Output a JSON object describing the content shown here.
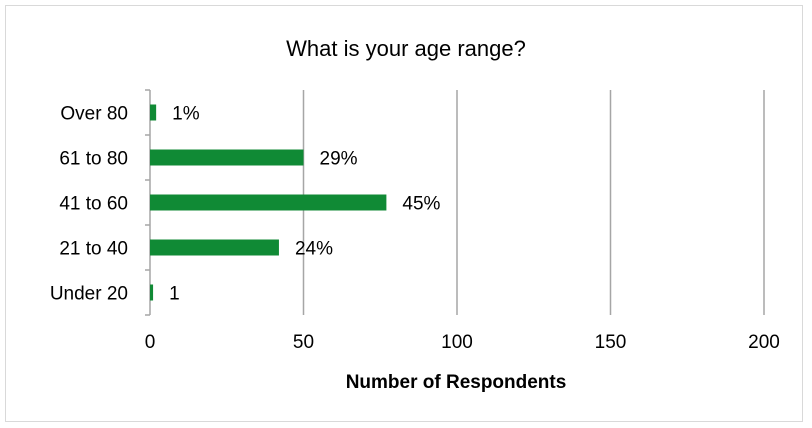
{
  "chart_data": {
    "type": "bar",
    "orientation": "horizontal",
    "title": "What is your age range?",
    "xlabel": "Number of Respondents",
    "ylabel": "",
    "categories": [
      "Over 80",
      "61 to 80",
      "41 to 60",
      "21 to 40",
      "Under 20"
    ],
    "values": [
      2,
      50,
      77,
      42,
      1
    ],
    "data_labels": [
      "1%",
      "29%",
      "45%",
      "24%",
      "1"
    ],
    "xlim": [
      0,
      200
    ],
    "x_ticks": [
      "0",
      "50",
      "100",
      "150",
      "200"
    ],
    "grid": "vertical",
    "legend": "none",
    "bar_color": "#108a35",
    "grid_color": "#a6a6a6"
  }
}
